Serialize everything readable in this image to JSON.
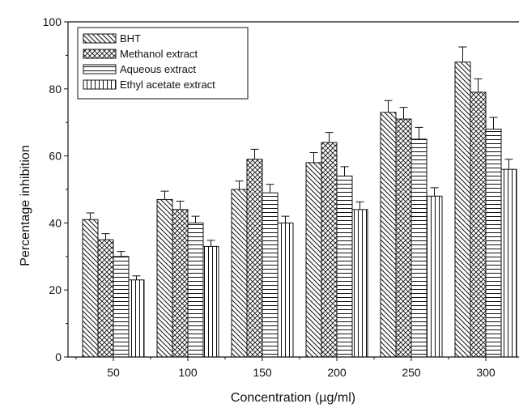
{
  "chart_data": {
    "type": "bar",
    "xlabel": "Concentration (µg/ml)",
    "ylabel": "Percentage inhibition",
    "ylim": [
      0,
      100
    ],
    "yticks": [
      0,
      20,
      40,
      60,
      80,
      100
    ],
    "categories": [
      "50",
      "100",
      "150",
      "200",
      "250",
      "300"
    ],
    "grid": false,
    "legend_position": "top-left",
    "error_bars": true,
    "series": [
      {
        "name": "BHT",
        "pattern": "backslash-hatch",
        "values": [
          41,
          47,
          50,
          58,
          73,
          88
        ],
        "errors": [
          2,
          2.5,
          2.5,
          3,
          3.5,
          4.5
        ]
      },
      {
        "name": "Methanol extract",
        "pattern": "crosshatch",
        "values": [
          35,
          44,
          59,
          64,
          71,
          79
        ],
        "errors": [
          1.8,
          2.5,
          3,
          3,
          3.5,
          4
        ]
      },
      {
        "name": "Aqueous extract",
        "pattern": "horizontal-lines",
        "values": [
          30,
          40,
          49,
          54,
          65,
          68
        ],
        "errors": [
          1.5,
          2,
          2.5,
          2.8,
          3.5,
          3.5
        ]
      },
      {
        "name": "Ethyl acetate extract",
        "pattern": "vertical-lines",
        "values": [
          23,
          33,
          40,
          44,
          48,
          56
        ],
        "errors": [
          1.2,
          1.8,
          2,
          2.3,
          2.5,
          3
        ]
      }
    ]
  }
}
